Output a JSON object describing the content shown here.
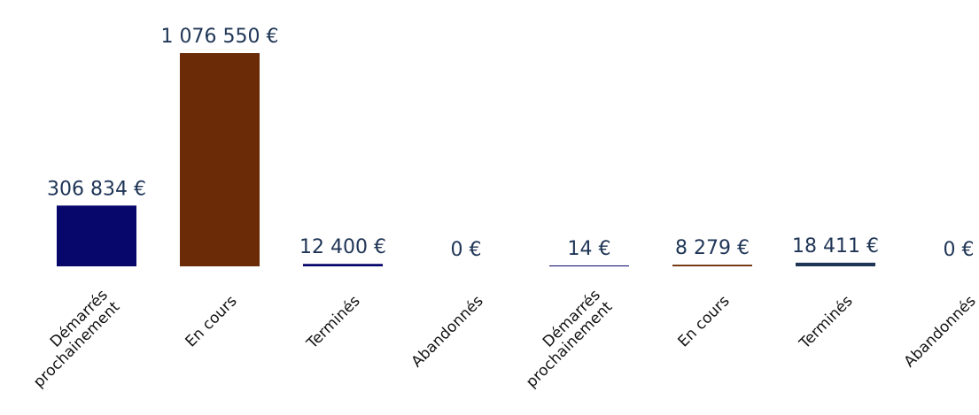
{
  "chart_data": {
    "type": "bar",
    "categories": [
      [
        "Démarrés",
        "prochainement"
      ],
      [
        "En cours"
      ],
      [
        "Terminés"
      ],
      [
        "Abandonnés"
      ],
      [
        "Démarrés",
        "prochainement"
      ],
      [
        "En cours"
      ],
      [
        "Terminés"
      ],
      [
        "Abandonnés"
      ]
    ],
    "values": [
      306834,
      1076550,
      12400,
      0,
      14,
      8279,
      18411,
      0
    ],
    "value_labels": [
      "306 834 €",
      "1 076 550 €",
      "12 400 €",
      "0 €",
      "14 €",
      "8 279 €",
      "18 411 €",
      "0 €"
    ],
    "bar_colors": [
      "#06066b",
      "#6b2b06",
      "#06066b",
      "#6b2b06",
      "#06066b",
      "#6b2b06",
      "#1f3556",
      "#6b2b06"
    ],
    "label_color": "#1f3556",
    "ylim": [
      0,
      1076550
    ],
    "grid": false,
    "legend": "none"
  }
}
